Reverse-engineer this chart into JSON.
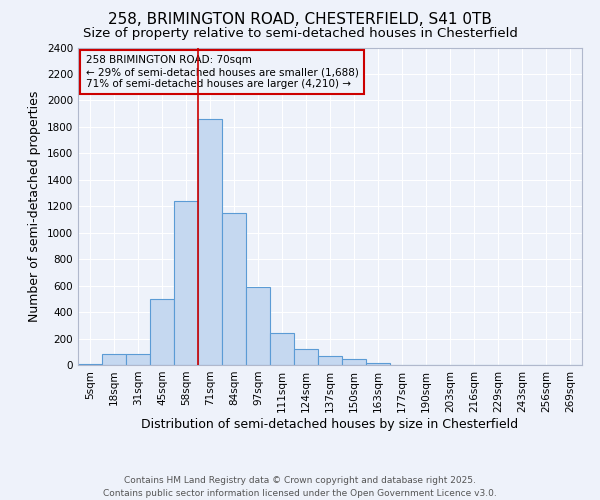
{
  "title_line1": "258, BRIMINGTON ROAD, CHESTERFIELD, S41 0TB",
  "title_line2": "Size of property relative to semi-detached houses in Chesterfield",
  "xlabel": "Distribution of semi-detached houses by size in Chesterfield",
  "ylabel": "Number of semi-detached properties",
  "categories": [
    "5sqm",
    "18sqm",
    "31sqm",
    "45sqm",
    "58sqm",
    "71sqm",
    "84sqm",
    "97sqm",
    "111sqm",
    "124sqm",
    "137sqm",
    "150sqm",
    "163sqm",
    "177sqm",
    "190sqm",
    "203sqm",
    "216sqm",
    "229sqm",
    "243sqm",
    "256sqm",
    "269sqm"
  ],
  "values": [
    10,
    80,
    80,
    500,
    1240,
    1860,
    1150,
    590,
    240,
    120,
    65,
    45,
    15,
    0,
    0,
    0,
    0,
    0,
    0,
    0,
    0
  ],
  "bar_color": "#c5d8f0",
  "bar_edge_color": "#5b9bd5",
  "background_color": "#eef2fa",
  "grid_color": "#ffffff",
  "red_line_label": "258 BRIMINGTON ROAD: 70sqm",
  "pct_smaller": "29%",
  "pct_smaller_count": "1,688",
  "pct_larger": "71%",
  "pct_larger_count": "4,210",
  "annotation_box_edge_color": "#cc0000",
  "ylim": [
    0,
    2400
  ],
  "yticks": [
    0,
    200,
    400,
    600,
    800,
    1000,
    1200,
    1400,
    1600,
    1800,
    2000,
    2200,
    2400
  ],
  "footer": "Contains HM Land Registry data © Crown copyright and database right 2025.\nContains public sector information licensed under the Open Government Licence v3.0.",
  "title_fontsize": 11,
  "subtitle_fontsize": 9.5,
  "axis_label_fontsize": 9,
  "tick_fontsize": 7.5,
  "ann_fontsize": 7.5,
  "footer_fontsize": 6.5
}
